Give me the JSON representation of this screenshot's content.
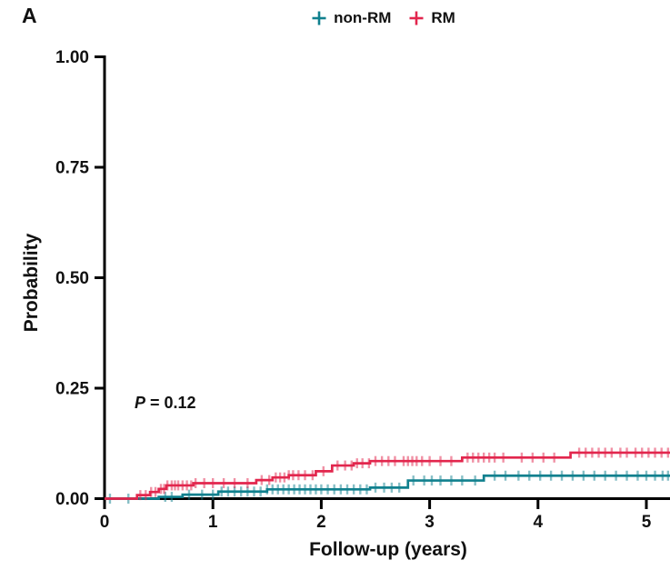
{
  "figure": {
    "panel_label": "A",
    "annotation": {
      "symbol": "P",
      "rest": " = 0.12"
    }
  },
  "chart_data": {
    "type": "line",
    "subtype": "kaplan_meier_cumulative_incidence_step",
    "title": "",
    "xlabel": "Follow-up (years)",
    "ylabel": "Probability",
    "xlim": [
      0,
      5.22
    ],
    "ylim": [
      0,
      1.0
    ],
    "xticks": [
      0,
      1,
      2,
      3,
      4,
      5
    ],
    "yticks": [
      {
        "label": "0.00",
        "value": 0
      },
      {
        "label": "0.25",
        "value": 0.25
      },
      {
        "label": "0.50",
        "value": 0.5
      },
      {
        "label": "0.75",
        "value": 0.75
      },
      {
        "label": "1.00",
        "value": 1.0
      }
    ],
    "grid": false,
    "legend_position": "top-center",
    "annotation": "P = 0.12",
    "axis_color": "#000000",
    "series": [
      {
        "name": "non-RM",
        "color": "#10808E",
        "steps": [
          [
            0,
            0
          ],
          [
            0.5,
            0.004
          ],
          [
            0.72,
            0.009
          ],
          [
            1.05,
            0.016
          ],
          [
            1.5,
            0.021
          ],
          [
            2.45,
            0.025
          ],
          [
            2.8,
            0.041
          ],
          [
            3.5,
            0.052
          ]
        ],
        "final_value": 0.052,
        "censor_times": [
          0.05,
          0.22,
          0.56,
          0.62,
          0.78,
          0.9,
          1.0,
          1.08,
          1.14,
          1.2,
          1.26,
          1.32,
          1.38,
          1.44,
          1.5,
          1.55,
          1.6,
          1.65,
          1.7,
          1.75,
          1.8,
          1.85,
          1.9,
          1.95,
          2.0,
          2.06,
          2.12,
          2.18,
          2.24,
          2.3,
          2.36,
          2.42,
          2.5,
          2.58,
          2.65,
          2.72,
          2.85,
          2.95,
          3.02,
          3.1,
          3.2,
          3.3,
          3.42,
          3.6,
          3.7,
          3.82,
          3.92,
          4.02,
          4.12,
          4.22,
          4.32,
          4.42,
          4.52,
          4.62,
          4.72,
          4.82,
          4.92,
          5.0,
          5.08,
          5.15,
          5.2
        ]
      },
      {
        "name": "RM",
        "color": "#E2264D",
        "steps": [
          [
            0,
            0
          ],
          [
            0.3,
            0.008
          ],
          [
            0.42,
            0.015
          ],
          [
            0.5,
            0.022
          ],
          [
            0.57,
            0.03
          ],
          [
            0.82,
            0.035
          ],
          [
            1.4,
            0.042
          ],
          [
            1.55,
            0.048
          ],
          [
            1.7,
            0.053
          ],
          [
            1.95,
            0.062
          ],
          [
            2.1,
            0.075
          ],
          [
            2.3,
            0.08
          ],
          [
            2.45,
            0.085
          ],
          [
            3.3,
            0.093
          ],
          [
            4.3,
            0.104
          ]
        ],
        "final_value": 0.104,
        "censor_times": [
          0.33,
          0.38,
          0.43,
          0.47,
          0.52,
          0.55,
          0.58,
          0.62,
          0.65,
          0.68,
          0.72,
          0.76,
          0.8,
          0.84,
          0.92,
          1.0,
          1.1,
          1.2,
          1.32,
          1.45,
          1.52,
          1.58,
          1.62,
          1.66,
          1.7,
          1.74,
          1.79,
          1.85,
          1.92,
          2.02,
          2.15,
          2.22,
          2.28,
          2.33,
          2.38,
          2.44,
          2.5,
          2.56,
          2.62,
          2.68,
          2.76,
          2.8,
          2.84,
          2.88,
          2.93,
          3.0,
          3.1,
          3.2,
          3.35,
          3.4,
          3.45,
          3.5,
          3.55,
          3.6,
          3.68,
          3.85,
          3.95,
          4.05,
          4.15,
          4.38,
          4.44,
          4.5,
          4.56,
          4.62,
          4.68,
          4.76,
          4.82,
          4.9,
          4.96,
          5.02,
          5.08,
          5.14,
          5.2
        ]
      }
    ]
  }
}
